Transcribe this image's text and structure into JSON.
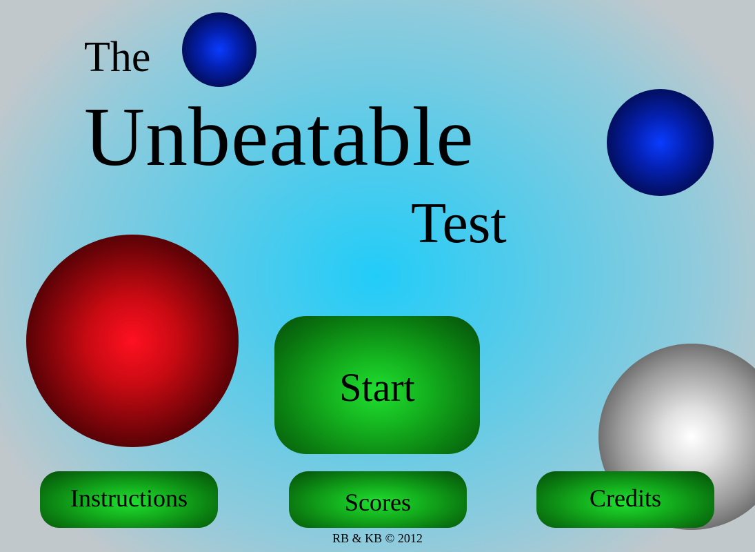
{
  "title": {
    "line1": "The",
    "line2": "Unbeatable",
    "line3": "Test"
  },
  "buttons": {
    "start": "Start",
    "instructions": "Instructions",
    "scores": "Scores",
    "credits": "Credits"
  },
  "footer": {
    "copyright": "RB & KB © 2012"
  },
  "decorations": [
    {
      "name": "blue-ball-small",
      "color": "#0420b0"
    },
    {
      "name": "blue-ball-large",
      "color": "#0420b0"
    },
    {
      "name": "red-ball",
      "color": "#ff1020"
    },
    {
      "name": "silver-ball",
      "color": "#e0e0e0"
    }
  ],
  "colors": {
    "background": "#22ccf8",
    "button": "#14b01e"
  }
}
